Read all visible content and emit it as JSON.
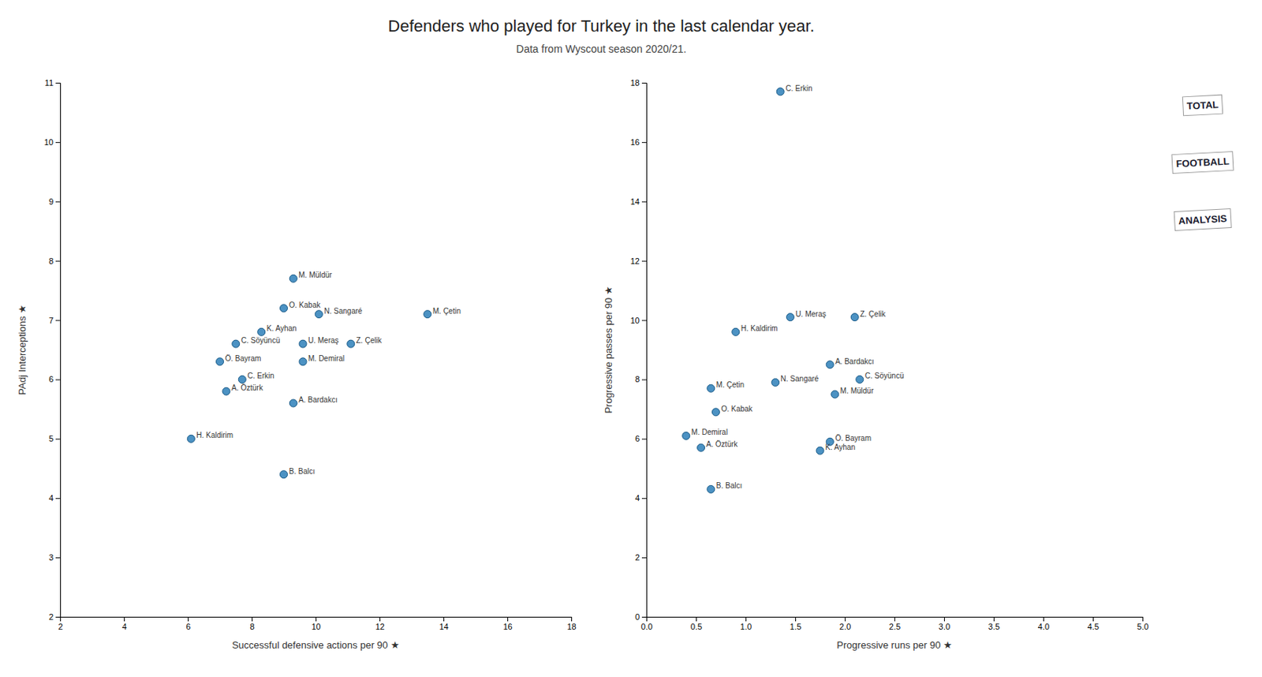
{
  "chart_data": [
    {
      "type": "scatter",
      "title": "Defenders who played for Turkey in the last calendar year.",
      "subtitle": "Data from Wyscout season 2020/21.",
      "xlabel": "Successful defensive actions per 90  ★",
      "ylabel": "PAdj Interceptions  ★",
      "xlim": [
        2,
        18
      ],
      "ylim": [
        2,
        11
      ],
      "xticks": [
        2,
        4,
        6,
        8,
        10,
        12,
        14,
        16,
        18
      ],
      "yticks": [
        2,
        3,
        4,
        5,
        6,
        7,
        8,
        9,
        10,
        11
      ],
      "grid": false,
      "x": [
        9.3,
        9.0,
        10.1,
        13.5,
        8.3,
        7.5,
        9.6,
        11.1,
        7.0,
        9.6,
        7.7,
        7.2,
        9.3,
        6.1,
        9.0
      ],
      "values": [
        7.7,
        7.2,
        7.1,
        7.1,
        6.8,
        6.6,
        6.6,
        6.6,
        6.3,
        6.3,
        6.0,
        5.8,
        5.6,
        5.0,
        4.4
      ],
      "annotations": [
        {
          "text": "M. Müldür",
          "x": 9.3,
          "y": 7.7
        },
        {
          "text": "O. Kabak",
          "x": 9.0,
          "y": 7.2
        },
        {
          "text": "N. Sangaré",
          "x": 10.1,
          "y": 7.1
        },
        {
          "text": "M. Çetin",
          "x": 13.5,
          "y": 7.1
        },
        {
          "text": "K. Ayhan",
          "x": 8.3,
          "y": 6.8
        },
        {
          "text": "C. Söyüncü",
          "x": 7.5,
          "y": 6.6
        },
        {
          "text": "U. Meraş",
          "x": 9.6,
          "y": 6.6
        },
        {
          "text": "Z. Çelik",
          "x": 11.1,
          "y": 6.6
        },
        {
          "text": "Ö. Bayram",
          "x": 7.0,
          "y": 6.3
        },
        {
          "text": "M. Demiral",
          "x": 9.6,
          "y": 6.3
        },
        {
          "text": "C. Erkin",
          "x": 7.7,
          "y": 6.0
        },
        {
          "text": "A. Öztürk",
          "x": 7.2,
          "y": 5.8
        },
        {
          "text": "A. Bardakcı",
          "x": 9.3,
          "y": 5.6
        },
        {
          "text": "H. Kaldirim",
          "x": 6.1,
          "y": 5.0
        },
        {
          "text": "B. Balcı",
          "x": 9.0,
          "y": 4.4
        }
      ]
    },
    {
      "type": "scatter",
      "xlabel": "Progressive runs per 90  ★",
      "ylabel": "Progressive passes per 90  ★",
      "xlim": [
        0,
        5
      ],
      "ylim": [
        0,
        18
      ],
      "xticks": [
        {
          "value": 0,
          "label": "0.0"
        },
        0.5,
        {
          "value": 1,
          "label": "1.0"
        },
        1.5,
        {
          "value": 2,
          "label": "2.0"
        },
        2.5,
        {
          "value": 3,
          "label": "3.0"
        },
        3.5,
        {
          "value": 4,
          "label": "4.0"
        },
        4.5,
        {
          "value": 5,
          "label": "5.0"
        }
      ],
      "yticks": [
        0,
        2,
        4,
        6,
        8,
        10,
        12,
        14,
        16,
        18
      ],
      "grid": false,
      "x": [
        1.35,
        0.9,
        1.45,
        2.1,
        1.85,
        2.15,
        0.65,
        1.3,
        1.9,
        0.7,
        0.4,
        0.55,
        1.85,
        1.75,
        0.65
      ],
      "values": [
        17.7,
        9.6,
        10.1,
        10.1,
        8.5,
        8.0,
        7.7,
        7.9,
        7.5,
        6.9,
        6.1,
        5.7,
        5.9,
        5.6,
        4.3
      ],
      "annotations": [
        {
          "text": "C. Erkin",
          "x": 1.35,
          "y": 17.7
        },
        {
          "text": "H. Kaldirim",
          "x": 0.9,
          "y": 9.6
        },
        {
          "text": "U. Meraş",
          "x": 1.45,
          "y": 10.1
        },
        {
          "text": "Z. Çelik",
          "x": 2.1,
          "y": 10.1
        },
        {
          "text": "A. Bardakcı",
          "x": 1.85,
          "y": 8.5
        },
        {
          "text": "C. Söyüncü",
          "x": 2.15,
          "y": 8.0
        },
        {
          "text": "M. Çetin",
          "x": 0.65,
          "y": 7.7
        },
        {
          "text": "N. Sangaré",
          "x": 1.3,
          "y": 7.9
        },
        {
          "text": "M. Müldür",
          "x": 1.9,
          "y": 7.5
        },
        {
          "text": "O. Kabak",
          "x": 0.7,
          "y": 6.9
        },
        {
          "text": "M. Demiral",
          "x": 0.4,
          "y": 6.1
        },
        {
          "text": "A. Öztürk",
          "x": 0.55,
          "y": 5.7
        },
        {
          "text": "Ö. Bayram",
          "x": 1.85,
          "y": 5.9
        },
        {
          "text": "K. Ayhan",
          "x": 1.75,
          "y": 5.6
        },
        {
          "text": "B. Balcı",
          "x": 0.65,
          "y": 4.3
        },
        {
          "text": "TOTAL"
        },
        {
          "text": "FOOTBALL"
        },
        {
          "text": "ANALYSIS"
        }
      ]
    }
  ]
}
